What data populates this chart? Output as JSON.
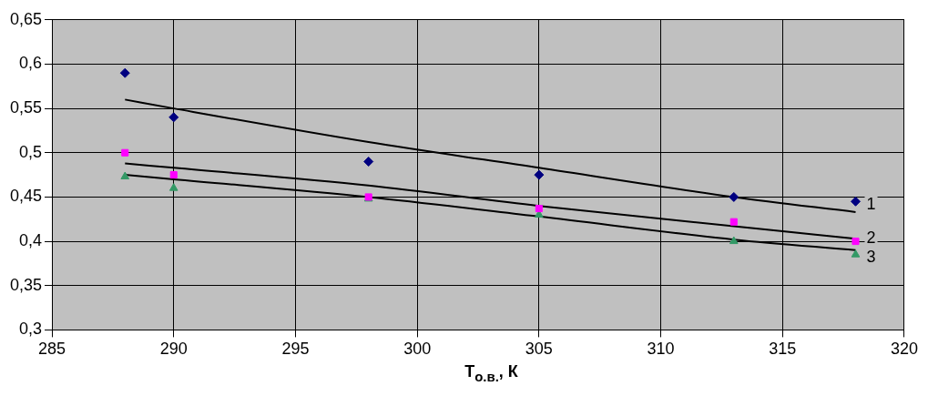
{
  "chart_data": {
    "type": "scatter",
    "xlabel": "T$_{о.в.}$, К",
    "xlim": [
      285,
      320
    ],
    "xticks": [
      285,
      290,
      295,
      300,
      305,
      310,
      315,
      320
    ],
    "ylim": [
      0.3,
      0.65
    ],
    "yticks": [
      {
        "value": 0.3,
        "label": "0,3"
      },
      {
        "value": 0.35,
        "label": "0,35"
      },
      {
        "value": 0.4,
        "label": "0,4"
      },
      {
        "value": 0.45,
        "label": "0,45"
      },
      {
        "value": 0.5,
        "label": "0,5"
      },
      {
        "value": 0.55,
        "label": "0,55"
      },
      {
        "value": 0.6,
        "label": "0,6"
      },
      {
        "value": 0.65,
        "label": "0,65"
      }
    ],
    "grid": true,
    "legend": false,
    "series": [
      {
        "type": "scatter",
        "marker": "diamond",
        "color": "#000080",
        "x": [
          288,
          290,
          298,
          305,
          313,
          318
        ],
        "values": [
          0.59,
          0.54,
          0.49,
          0.475,
          0.45,
          0.445
        ]
      },
      {
        "type": "scatter",
        "marker": "square",
        "color": "#ff00ff",
        "x": [
          288,
          290,
          298,
          305,
          313,
          318
        ],
        "values": [
          0.5,
          0.475,
          0.45,
          0.437,
          0.422,
          0.4
        ]
      },
      {
        "type": "scatter",
        "marker": "triangle",
        "color": "#339966",
        "x": [
          288,
          290,
          298,
          305,
          313,
          318
        ],
        "values": [
          0.473,
          0.46,
          0.448,
          0.43,
          0.4,
          0.385
        ]
      },
      {
        "type": "line",
        "name": "1",
        "marker": "none",
        "color": "#000000",
        "x": [
          288,
          290,
          298,
          305,
          313,
          318
        ],
        "values": [
          0.56,
          0.55,
          0.512,
          0.483,
          0.45,
          0.433
        ]
      },
      {
        "type": "line",
        "name": "2",
        "marker": "none",
        "color": "#000000",
        "x": [
          288,
          290,
          298,
          305,
          313,
          318
        ],
        "values": [
          0.488,
          0.483,
          0.463,
          0.44,
          0.417,
          0.403
        ]
      },
      {
        "type": "line",
        "name": "3",
        "marker": "none",
        "color": "#000000",
        "x": [
          288,
          290,
          298,
          305,
          313,
          318
        ],
        "values": [
          0.475,
          0.47,
          0.45,
          0.428,
          0.402,
          0.39
        ]
      }
    ]
  }
}
